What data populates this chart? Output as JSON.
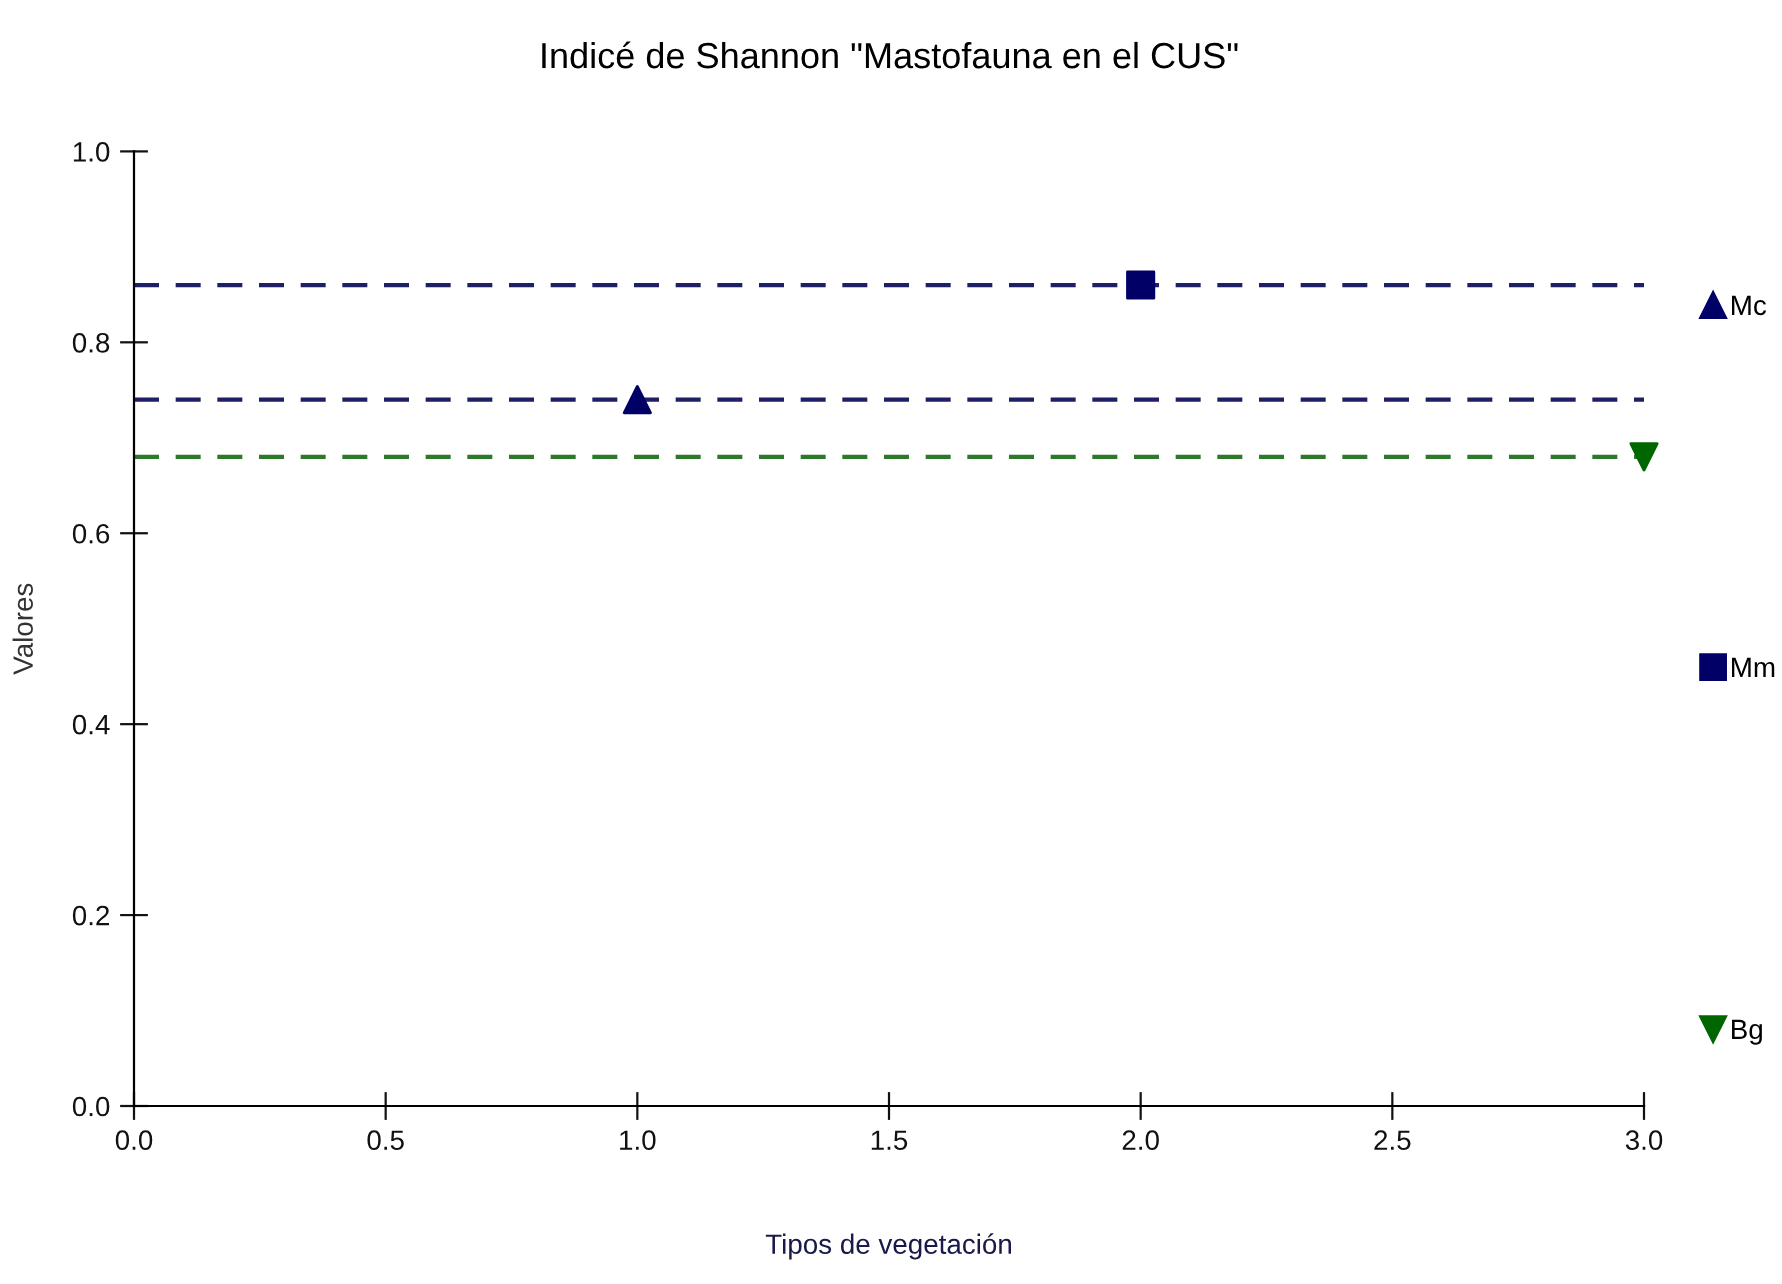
{
  "chart_data": {
    "type": "scatter",
    "title": "Indicé de Shannon \"Mastofauna en el CUS\"",
    "xlabel": "Tipos de vegetación",
    "ylabel": "Valores",
    "series": [
      {
        "name": "Mc",
        "color": "#000066",
        "x": [
          1.0
        ],
        "values": [
          0.74
        ],
        "marker": "triangle"
      },
      {
        "name": "Mm",
        "color": "#000066",
        "x": [
          2.0
        ],
        "values": [
          0.86
        ],
        "marker": "square"
      },
      {
        "name": "Bg",
        "color": "#006600",
        "x": [
          3.0
        ],
        "values": [
          0.68
        ],
        "marker": "triangle_down"
      }
    ],
    "ref_lines": [
      {
        "axis": "y",
        "value": 0.86,
        "color": "#1f1f66",
        "line_style": "dashed"
      },
      {
        "axis": "y",
        "value": 0.74,
        "color": "#1f1f66",
        "line_style": "dashed"
      },
      {
        "axis": "y",
        "value": 0.68,
        "color": "#2a7a2a",
        "line_style": "dashed"
      }
    ],
    "xlim": [
      0,
      3
    ],
    "ylim": [
      0,
      1
    ],
    "xticks": [
      {
        "value": 0,
        "label": "0.0"
      },
      {
        "value": 0.5,
        "label": "0.5"
      },
      {
        "value": 1,
        "label": "1.0"
      },
      {
        "value": 1.5,
        "label": "1.5"
      },
      {
        "value": 2,
        "label": "2.0"
      },
      {
        "value": 2.5,
        "label": "2.5"
      },
      {
        "value": 3,
        "label": "3.0"
      }
    ],
    "yticks": [
      {
        "value": 0,
        "label": "0.0"
      },
      {
        "value": 0.2,
        "label": "0.2"
      },
      {
        "value": 0.4,
        "label": "0.4"
      },
      {
        "value": 0.6,
        "label": "0.6"
      },
      {
        "value": 0.8,
        "label": "0.8"
      },
      {
        "value": 1,
        "label": "1.0"
      }
    ],
    "grid": false,
    "legend": "right"
  }
}
